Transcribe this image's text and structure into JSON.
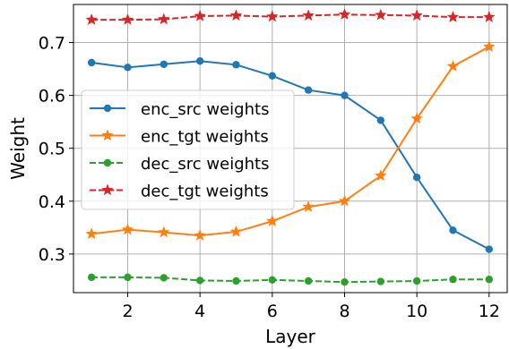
{
  "chart_data": {
    "type": "line",
    "xlabel": "Layer",
    "ylabel": "Weight",
    "xlim": [
      0.5,
      12.5
    ],
    "ylim": [
      0.227,
      0.772
    ],
    "xticks": [
      2,
      4,
      6,
      8,
      10,
      12
    ],
    "yticks": [
      0.3,
      0.4,
      0.5,
      0.6,
      0.7
    ],
    "ytick_labels": [
      "0.3",
      "0.4",
      "0.5",
      "0.6",
      "0.7"
    ],
    "grid": true,
    "legend_position": "center-left",
    "x": [
      1,
      2,
      3,
      4,
      5,
      6,
      7,
      8,
      9,
      10,
      11,
      12
    ],
    "series": [
      {
        "name": "enc_src weights",
        "color": "#1f77b4",
        "linestyle": "solid",
        "marker": "circle",
        "values": [
          0.662,
          0.653,
          0.659,
          0.665,
          0.658,
          0.637,
          0.61,
          0.6,
          0.553,
          0.445,
          0.345,
          0.309
        ]
      },
      {
        "name": "enc_tgt weights",
        "color": "#ff7f0e",
        "linestyle": "solid",
        "marker": "star",
        "values": [
          0.338,
          0.346,
          0.341,
          0.335,
          0.342,
          0.362,
          0.389,
          0.4,
          0.448,
          0.556,
          0.655,
          0.692
        ]
      },
      {
        "name": "dec_src weights",
        "color": "#2ca02c",
        "linestyle": "dashed",
        "marker": "circle",
        "values": [
          0.256,
          0.256,
          0.255,
          0.25,
          0.249,
          0.251,
          0.249,
          0.247,
          0.248,
          0.249,
          0.252,
          0.252
        ]
      },
      {
        "name": "dec_tgt weights",
        "color": "#d62728",
        "linestyle": "dashed",
        "marker": "star",
        "values": [
          0.743,
          0.743,
          0.744,
          0.75,
          0.751,
          0.749,
          0.751,
          0.753,
          0.752,
          0.751,
          0.748,
          0.748
        ]
      }
    ]
  }
}
